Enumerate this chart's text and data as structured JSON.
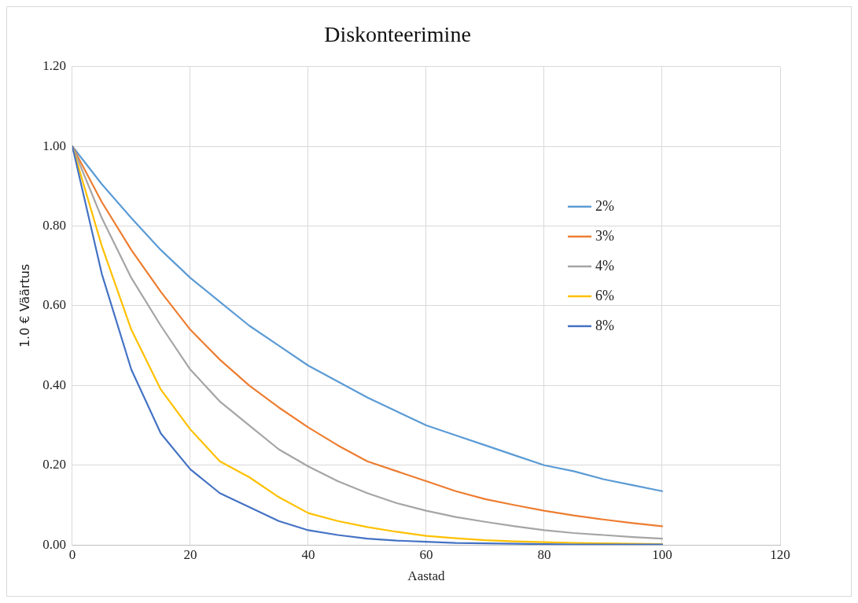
{
  "chart_data": {
    "type": "line",
    "title": "Diskonteerimine",
    "xlabel": "Aastad",
    "ylabel": "1.0 € Väärtus",
    "x": [
      0,
      5,
      10,
      15,
      20,
      25,
      30,
      35,
      40,
      45,
      50,
      55,
      60,
      65,
      70,
      75,
      80,
      85,
      90,
      95,
      100
    ],
    "series": [
      {
        "name": "2%",
        "color": "#5b9bd5",
        "values": [
          1,
          0.905,
          0.82,
          0.74,
          0.67,
          0.61,
          0.55,
          0.5,
          0.45,
          0.41,
          0.37,
          0.335,
          0.3,
          0.275,
          0.25,
          0.225,
          0.2,
          0.185,
          0.165,
          0.15,
          0.135
        ]
      },
      {
        "name": "3%",
        "color": "#ed7d31",
        "values": [
          1,
          0.86,
          0.74,
          0.635,
          0.54,
          0.465,
          0.4,
          0.345,
          0.295,
          0.25,
          0.21,
          0.185,
          0.16,
          0.135,
          0.115,
          0.1,
          0.086,
          0.074,
          0.064,
          0.055,
          0.047
        ]
      },
      {
        "name": "4%",
        "color": "#a5a5a5",
        "values": [
          1,
          0.82,
          0.67,
          0.55,
          0.44,
          0.36,
          0.3,
          0.24,
          0.197,
          0.16,
          0.13,
          0.105,
          0.086,
          0.07,
          0.058,
          0.047,
          0.037,
          0.03,
          0.025,
          0.02,
          0.016
        ]
      },
      {
        "name": "6%",
        "color": "#ffc000",
        "values": [
          1,
          0.75,
          0.54,
          0.39,
          0.29,
          0.21,
          0.17,
          0.12,
          0.08,
          0.06,
          0.045,
          0.033,
          0.023,
          0.017,
          0.012,
          0.009,
          0.007,
          0.005,
          0.004,
          0.003,
          0.002
        ]
      },
      {
        "name": "8%",
        "color": "#4472c4",
        "values": [
          1,
          0.68,
          0.44,
          0.28,
          0.19,
          0.13,
          0.095,
          0.06,
          0.037,
          0.025,
          0.016,
          0.011,
          0.008,
          0.005,
          0.004,
          0.003,
          0.002,
          0.001,
          0.001,
          0.001,
          0.001
        ]
      }
    ],
    "xlim": [
      0,
      120
    ],
    "xticks": [
      0,
      20,
      40,
      60,
      80,
      100,
      120
    ],
    "ylim": [
      0,
      1.2
    ],
    "yticks": [
      {
        "value": 0,
        "label": "0.00"
      },
      {
        "value": 0.2,
        "label": "0.20"
      },
      {
        "value": 0.4,
        "label": "0.40"
      },
      {
        "value": 0.6,
        "label": "0.60"
      },
      {
        "value": 0.8,
        "label": "0.80"
      },
      {
        "value": 1,
        "label": "1.00"
      },
      {
        "value": 1.2,
        "label": "1.20"
      }
    ],
    "grid": true,
    "legend": "right",
    "marker": "none",
    "line_style": "solid"
  }
}
